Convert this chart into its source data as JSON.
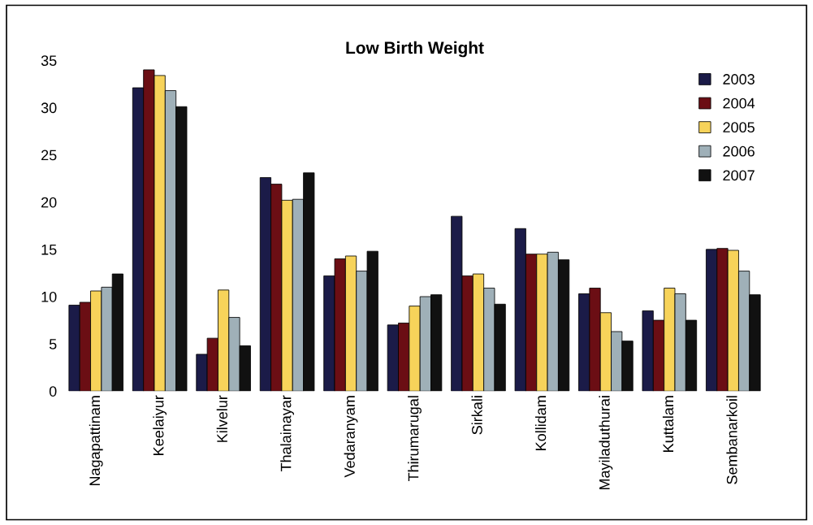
{
  "chart_data": {
    "type": "bar",
    "title": "Low Birth Weight",
    "categories": [
      "Nagapattinam",
      "Keelaiyur",
      "Kilvelur",
      "Thalainayar",
      "Vedaranyam",
      "Thirumarugal",
      "Sirkali",
      "Kollidam",
      "Mayiladuthurai",
      "Kuttalam",
      "Sembanarkoil"
    ],
    "series": [
      {
        "name": "2003",
        "color": "#1b1b48",
        "values": [
          9.1,
          32.1,
          3.9,
          22.6,
          12.2,
          7.0,
          18.5,
          17.2,
          10.3,
          8.5,
          15.0
        ]
      },
      {
        "name": "2004",
        "color": "#6b0e14",
        "values": [
          9.4,
          34.0,
          5.6,
          21.9,
          14.0,
          7.2,
          12.2,
          14.5,
          10.9,
          7.5,
          15.1
        ]
      },
      {
        "name": "2005",
        "color": "#f7d35a",
        "values": [
          10.6,
          33.4,
          10.7,
          20.2,
          14.3,
          9.0,
          12.4,
          14.5,
          8.3,
          10.9,
          14.9
        ]
      },
      {
        "name": "2006",
        "color": "#9fb0b8",
        "values": [
          11.0,
          31.8,
          7.8,
          20.3,
          12.7,
          10.0,
          10.9,
          14.7,
          6.3,
          10.3,
          12.7
        ]
      },
      {
        "name": "2007",
        "color": "#111111",
        "values": [
          12.4,
          30.1,
          4.8,
          23.1,
          14.8,
          10.2,
          9.2,
          13.9,
          5.3,
          7.5,
          10.2
        ]
      }
    ],
    "ylim": [
      0,
      35
    ],
    "yticks": [
      0,
      5,
      10,
      15,
      20,
      25,
      30,
      35
    ],
    "grid": false,
    "legend": "top right"
  }
}
